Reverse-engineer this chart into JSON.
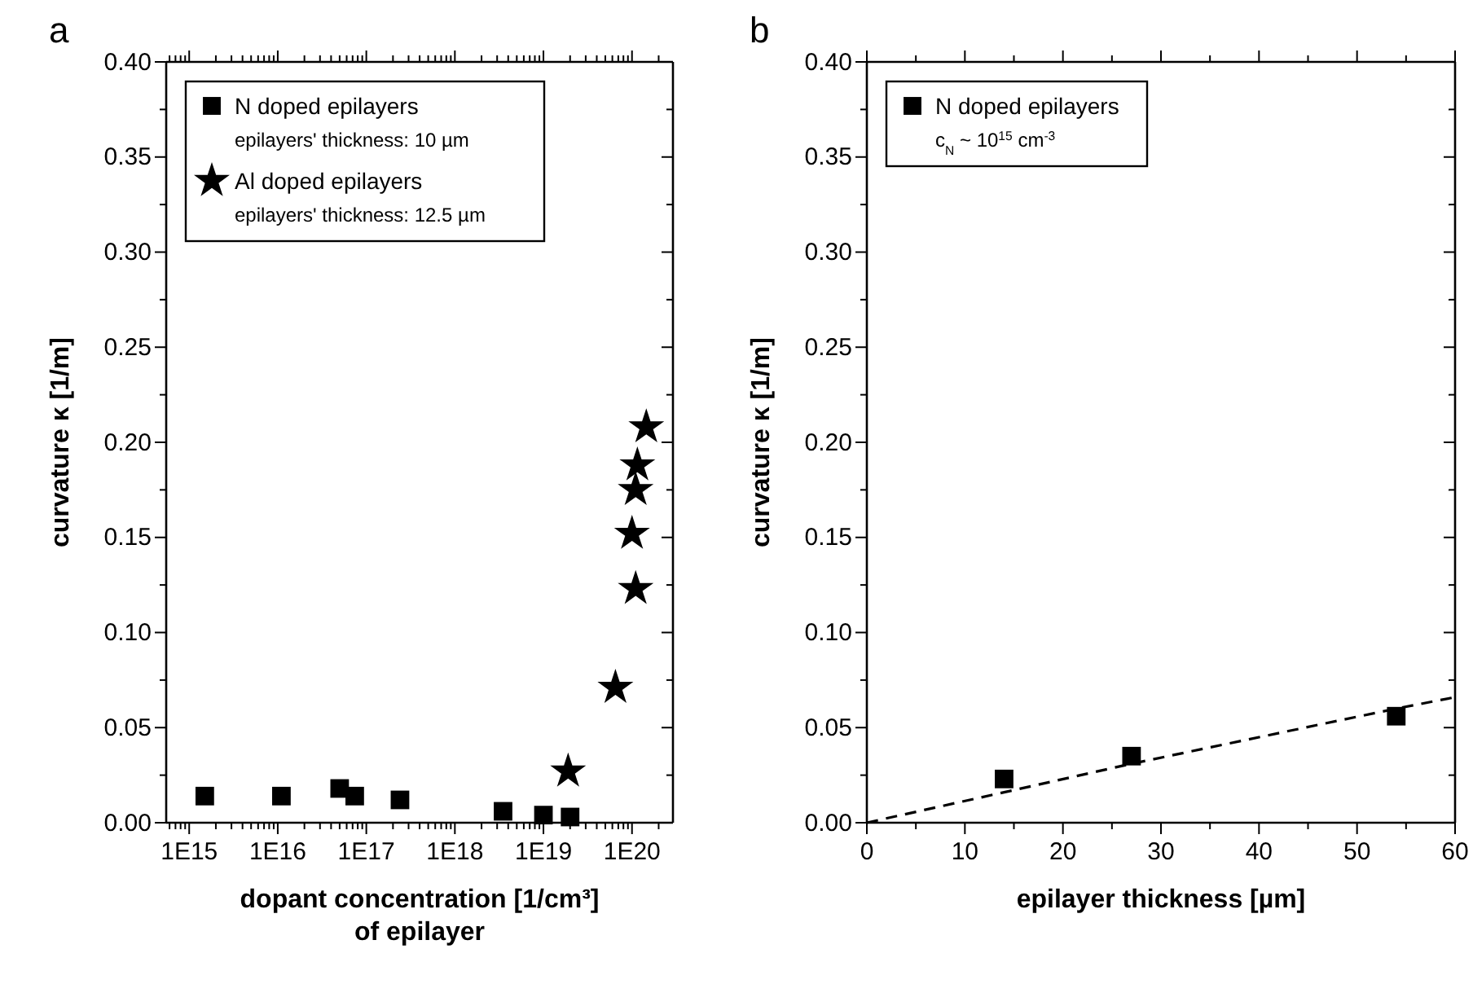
{
  "chart_data": [
    {
      "type": "scatter",
      "title": "a",
      "xlabel": "dopant concentration [1/cm³]\nof epilayer",
      "ylabel": "curvature κ [1/m]",
      "log": "x",
      "legend": "top left",
      "grid": false,
      "xlim": [
        550000000000000.0,
        2.9e+20
      ],
      "xticks": [
        {
          "value": 600000000000000.0,
          "label": null
        },
        {
          "value": 700000000000000.0,
          "label": null
        },
        {
          "value": 800000000000000.0,
          "label": null
        },
        {
          "value": 900000000000000.0,
          "label": null
        },
        {
          "value": 1000000000000000.0,
          "label": "1E15"
        },
        {
          "value": 2000000000000000.0,
          "label": null
        },
        {
          "value": 3000000000000000.0,
          "label": null
        },
        {
          "value": 4000000000000000.0,
          "label": null
        },
        {
          "value": 5000000000000000.0,
          "label": null
        },
        {
          "value": 6000000000000000.0,
          "label": null
        },
        {
          "value": 7000000000000000.0,
          "label": null
        },
        {
          "value": 8000000000000000.0,
          "label": null
        },
        {
          "value": 9000000000000000.0,
          "label": null
        },
        {
          "value": 1e+16,
          "label": "1E16"
        },
        {
          "value": 2e+16,
          "label": null
        },
        {
          "value": 3e+16,
          "label": null
        },
        {
          "value": 4e+16,
          "label": null
        },
        {
          "value": 5e+16,
          "label": null
        },
        {
          "value": 6e+16,
          "label": null
        },
        {
          "value": 7e+16,
          "label": null
        },
        {
          "value": 8e+16,
          "label": null
        },
        {
          "value": 9e+16,
          "label": null
        },
        {
          "value": 1e+17,
          "label": "1E17"
        },
        {
          "value": 2e+17,
          "label": null
        },
        {
          "value": 3e+17,
          "label": null
        },
        {
          "value": 4e+17,
          "label": null
        },
        {
          "value": 5e+17,
          "label": null
        },
        {
          "value": 6e+17,
          "label": null
        },
        {
          "value": 7e+17,
          "label": null
        },
        {
          "value": 8e+17,
          "label": null
        },
        {
          "value": 9e+17,
          "label": null
        },
        {
          "value": 1e+18,
          "label": "1E18"
        },
        {
          "value": 2e+18,
          "label": null
        },
        {
          "value": 3e+18,
          "label": null
        },
        {
          "value": 4e+18,
          "label": null
        },
        {
          "value": 5e+18,
          "label": null
        },
        {
          "value": 6e+18,
          "label": null
        },
        {
          "value": 7e+18,
          "label": null
        },
        {
          "value": 8e+18,
          "label": null
        },
        {
          "value": 9e+18,
          "label": null
        },
        {
          "value": 1e+19,
          "label": "1E19"
        },
        {
          "value": 2e+19,
          "label": null
        },
        {
          "value": 3e+19,
          "label": null
        },
        {
          "value": 4e+19,
          "label": null
        },
        {
          "value": 5e+19,
          "label": null
        },
        {
          "value": 6e+19,
          "label": null
        },
        {
          "value": 7e+19,
          "label": null
        },
        {
          "value": 8e+19,
          "label": null
        },
        {
          "value": 9e+19,
          "label": null
        },
        {
          "value": 1e+20,
          "label": "1E20"
        },
        {
          "value": 2e+20,
          "label": null
        }
      ],
      "ylim": [
        0,
        0.4
      ],
      "yticks": [
        {
          "value": 0,
          "label": "0.00"
        },
        {
          "value": 0.025,
          "label": null
        },
        {
          "value": 0.05,
          "label": "0.05"
        },
        {
          "value": 0.075,
          "label": null
        },
        {
          "value": 0.1,
          "label": "0.10"
        },
        {
          "value": 0.125,
          "label": null
        },
        {
          "value": 0.15,
          "label": "0.15"
        },
        {
          "value": 0.175,
          "label": null
        },
        {
          "value": 0.2,
          "label": "0.20"
        },
        {
          "value": 0.225,
          "label": null
        },
        {
          "value": 0.25,
          "label": "0.25"
        },
        {
          "value": 0.275,
          "label": null
        },
        {
          "value": 0.3,
          "label": "0.30"
        },
        {
          "value": 0.325,
          "label": null
        },
        {
          "value": 0.35,
          "label": "0.35"
        },
        {
          "value": 0.375,
          "label": null
        },
        {
          "value": 0.4,
          "label": "0.40"
        }
      ],
      "series": [
        {
          "name": "N doped epilayers\nepilayers' thickness: 10 µm",
          "color": "#000000",
          "marker": "square",
          "x": [
            1500000000000000.0,
            1.1e+16,
            5e+16,
            7.4e+16,
            2.4e+17,
            3.5e+18,
            1e+19,
            2e+19
          ],
          "values": [
            0.014,
            0.014,
            0.018,
            0.014,
            0.012,
            0.006,
            0.004,
            0.003
          ]
        },
        {
          "name": "Al doped epilayers\nepilayers' thickness: 12.5 µm",
          "color": "#000000",
          "marker": "star",
          "x": [
            1.9e+19,
            6.5e+19,
            1e+20,
            1.1e+20,
            1.1e+20,
            1.15e+20,
            1.45e+20
          ],
          "values": [
            0.027,
            0.071,
            0.152,
            0.123,
            0.175,
            0.188,
            0.208
          ]
        }
      ]
    },
    {
      "type": "scatter",
      "title": "b",
      "xlabel": "epilayer thickness [µm]",
      "ylabel": "curvature κ [1/m]",
      "legend": "top left",
      "grid": false,
      "xlim": [
        0,
        60
      ],
      "xticks": [
        0,
        {
          "value": 5,
          "label": null
        },
        10,
        {
          "value": 15,
          "label": null
        },
        20,
        {
          "value": 25,
          "label": null
        },
        30,
        {
          "value": 35,
          "label": null
        },
        40,
        {
          "value": 45,
          "label": null
        },
        50,
        {
          "value": 55,
          "label": null
        },
        60
      ],
      "ylim": [
        0,
        0.4
      ],
      "yticks": [
        {
          "value": 0,
          "label": "0.00"
        },
        {
          "value": 0.025,
          "label": null
        },
        {
          "value": 0.05,
          "label": "0.05"
        },
        {
          "value": 0.075,
          "label": null
        },
        {
          "value": 0.1,
          "label": "0.10"
        },
        {
          "value": 0.125,
          "label": null
        },
        {
          "value": 0.15,
          "label": "0.15"
        },
        {
          "value": 0.175,
          "label": null
        },
        {
          "value": 0.2,
          "label": "0.20"
        },
        {
          "value": 0.225,
          "label": null
        },
        {
          "value": 0.25,
          "label": "0.25"
        },
        {
          "value": 0.275,
          "label": null
        },
        {
          "value": 0.3,
          "label": "0.30"
        },
        {
          "value": 0.325,
          "label": null
        },
        {
          "value": 0.35,
          "label": "0.35"
        },
        {
          "value": 0.375,
          "label": null
        },
        {
          "value": 0.4,
          "label": "0.40"
        }
      ],
      "series": [
        {
          "name": "N doped epilayers\nc$_{N}$ ~ 10$^{15}$ cm$^{-3}$",
          "color": "#000000",
          "marker": "square",
          "x": [
            14,
            27,
            54
          ],
          "values": [
            0.023,
            0.035,
            0.056
          ]
        },
        {
          "type": "line",
          "color": "#000000",
          "line_style": "dashed",
          "marker": "none",
          "x": [
            0,
            14,
            27,
            54,
            60
          ],
          "values": [
            0,
            0.016,
            0.031,
            0.06,
            0.066
          ]
        }
      ]
    }
  ]
}
